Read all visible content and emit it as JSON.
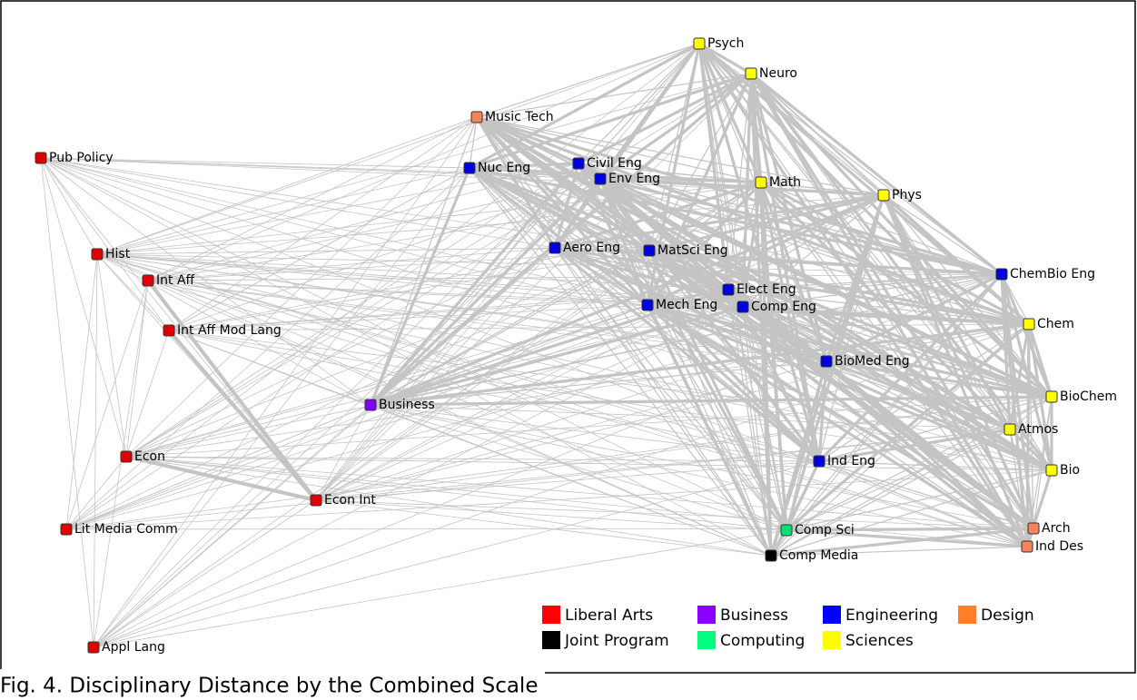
{
  "nodes": [
    {
      "label": "Psych",
      "color": "#ffff00"
    },
    {
      "label": "Neuro",
      "color": "#ffff00"
    },
    {
      "label": "Music Tech",
      "color": "#f4845c"
    },
    {
      "label": "Pub Policy",
      "color": "#e00000"
    },
    {
      "label": "Nuc Eng",
      "color": "#0000e0"
    },
    {
      "label": "Civil Eng",
      "color": "#0000e0"
    },
    {
      "label": "Env Eng",
      "color": "#0000e0"
    },
    {
      "label": "Math",
      "color": "#ffff00"
    },
    {
      "label": "Phys",
      "color": "#ffff00"
    },
    {
      "label": "Hist",
      "color": "#e00000"
    },
    {
      "label": "Aero Eng",
      "color": "#0000e0"
    },
    {
      "label": "MatSci Eng",
      "color": "#0000e0"
    },
    {
      "label": "Int Aff",
      "color": "#e00000"
    },
    {
      "label": "ChemBio Eng",
      "color": "#0000e0"
    },
    {
      "label": "Elect Eng",
      "color": "#0000e0"
    },
    {
      "label": "Mech Eng",
      "color": "#0000e0"
    },
    {
      "label": "Comp Eng",
      "color": "#0000e0"
    },
    {
      "label": "Int Aff Mod Lang",
      "color": "#e00000"
    },
    {
      "label": "Chem",
      "color": "#ffff00"
    },
    {
      "label": "BioMed Eng",
      "color": "#0000e0"
    },
    {
      "label": "BioChem",
      "color": "#ffff00"
    },
    {
      "label": "Business",
      "color": "#8000ff"
    },
    {
      "label": "Atmos",
      "color": "#ffff00"
    },
    {
      "label": "Econ",
      "color": "#e00000"
    },
    {
      "label": "Ind Eng",
      "color": "#0000e0"
    },
    {
      "label": "Bio",
      "color": "#ffff00"
    },
    {
      "label": "Econ Int",
      "color": "#e00000"
    },
    {
      "label": "Lit Media Comm",
      "color": "#e00000"
    },
    {
      "label": "Comp Sci",
      "color": "#00e070"
    },
    {
      "label": "Arch",
      "color": "#f4845c"
    },
    {
      "label": "Comp Media",
      "color": "#000000"
    },
    {
      "label": "Ind Des",
      "color": "#f4845c"
    },
    {
      "label": "Appl Lang",
      "color": "#e00000"
    }
  ],
  "legend": [
    {
      "label": "Liberal Arts",
      "color": "#ff0000"
    },
    {
      "label": "Business",
      "color": "#8b00ff"
    },
    {
      "label": "Engineering",
      "color": "#0000ff"
    },
    {
      "label": "Design",
      "color": "#ff7f27"
    },
    {
      "label": "Joint Program",
      "color": "#000000"
    },
    {
      "label": "Computing",
      "color": "#00ff80"
    },
    {
      "label": "Sciences",
      "color": "#ffff00"
    }
  ],
  "caption": "Fig. 4. Disciplinary Distance by the Combined Scale"
}
